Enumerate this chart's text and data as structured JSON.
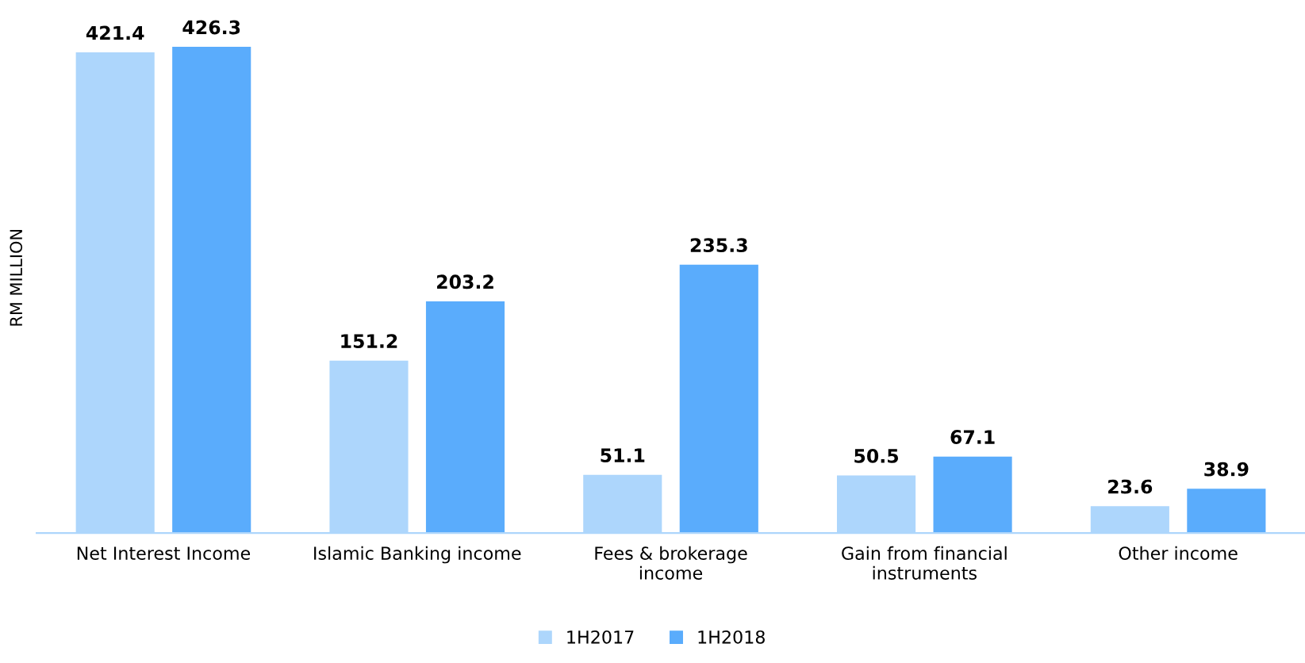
{
  "chart_data": {
    "type": "bar",
    "ylabel": "RM MILLION",
    "categories": [
      "Net Interest Income",
      "Islamic Banking income",
      "Fees & brokerage\nincome",
      "Gain from financial\ninstruments",
      "Other income"
    ],
    "series": [
      {
        "name": "1H2017",
        "color": "#add6fc",
        "values": [
          421.4,
          151.2,
          51.1,
          50.5,
          23.6
        ]
      },
      {
        "name": "1H2018",
        "color": "#5aacfc",
        "values": [
          426.3,
          203.2,
          235.3,
          67.1,
          38.9
        ]
      }
    ],
    "data_labels": true,
    "legend": "bottom",
    "grid": false,
    "tick_labels": "x"
  }
}
